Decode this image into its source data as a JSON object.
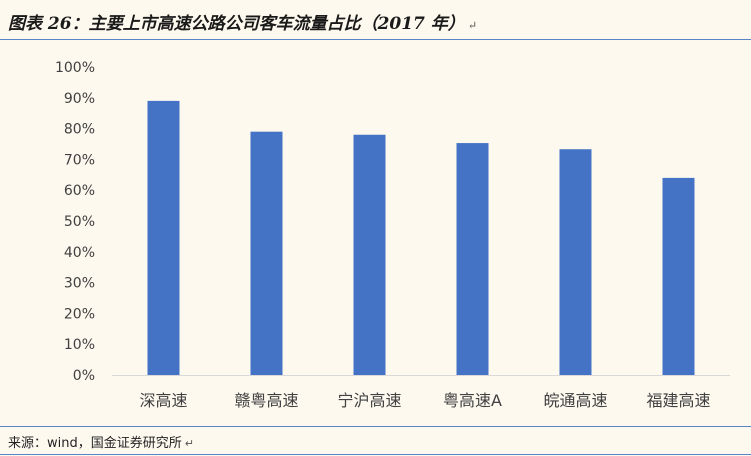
{
  "figure": {
    "title": "图表 26：主要上市高速公路公司客车流量占比（2017 年）",
    "return_mark": "↵",
    "source": "来源：wind，国金证券研究所",
    "source_return_mark": "↵"
  },
  "chart_data": {
    "type": "bar",
    "categories": [
      "深高速",
      "赣粤高速",
      "宁沪高速",
      "粤高速A",
      "皖通高速",
      "福建高速"
    ],
    "values": [
      89,
      79,
      78,
      75.3,
      73.3,
      64
    ],
    "ylim": [
      0,
      100
    ],
    "yticks": [
      "0%",
      "10%",
      "20%",
      "30%",
      "40%",
      "50%",
      "60%",
      "70%",
      "80%",
      "90%",
      "100%"
    ],
    "bar_color": "#4472c4",
    "grid": false,
    "legend": "none"
  }
}
